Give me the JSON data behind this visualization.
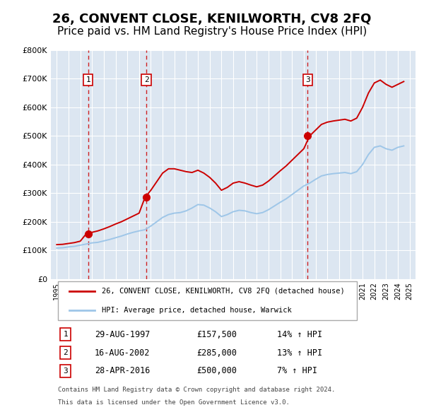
{
  "title": "26, CONVENT CLOSE, KENILWORTH, CV8 2FQ",
  "subtitle": "Price paid vs. HM Land Registry's House Price Index (HPI)",
  "title_fontsize": 13,
  "subtitle_fontsize": 11,
  "background_color": "#ffffff",
  "plot_bg_color": "#dce6f1",
  "grid_color": "#ffffff",
  "ylim": [
    0,
    800000
  ],
  "yticks": [
    0,
    100000,
    200000,
    300000,
    400000,
    500000,
    600000,
    700000,
    800000
  ],
  "ytick_labels": [
    "£0",
    "£100K",
    "£200K",
    "£300K",
    "£400K",
    "£500K",
    "£600K",
    "£700K",
    "£800K"
  ],
  "hpi_years": [
    1995,
    1995.5,
    1996,
    1996.5,
    1997,
    1997.5,
    1998,
    1998.5,
    1999,
    1999.5,
    2000,
    2000.5,
    2001,
    2001.5,
    2002,
    2002.5,
    2003,
    2003.5,
    2004,
    2004.5,
    2005,
    2005.5,
    2006,
    2006.5,
    2007,
    2007.5,
    2008,
    2008.5,
    2009,
    2009.5,
    2010,
    2010.5,
    2011,
    2011.5,
    2012,
    2012.5,
    2013,
    2013.5,
    2014,
    2014.5,
    2015,
    2015.5,
    2016,
    2016.5,
    2017,
    2017.5,
    2018,
    2018.5,
    2019,
    2019.5,
    2020,
    2020.5,
    2021,
    2021.5,
    2022,
    2022.5,
    2023,
    2023.5,
    2024,
    2024.5
  ],
  "hpi_values": [
    108000,
    109000,
    112000,
    114000,
    118000,
    122000,
    126000,
    128000,
    133000,
    138000,
    144000,
    150000,
    157000,
    163000,
    168000,
    172000,
    185000,
    200000,
    215000,
    225000,
    230000,
    232000,
    238000,
    248000,
    260000,
    258000,
    248000,
    235000,
    218000,
    225000,
    235000,
    240000,
    238000,
    232000,
    228000,
    232000,
    242000,
    255000,
    268000,
    280000,
    295000,
    310000,
    325000,
    335000,
    348000,
    360000,
    365000,
    368000,
    370000,
    372000,
    368000,
    375000,
    400000,
    435000,
    460000,
    465000,
    455000,
    450000,
    460000,
    465000
  ],
  "price_years": [
    1995,
    1995.5,
    1996,
    1996.5,
    1997,
    1997.5,
    1998,
    1998.5,
    1999,
    1999.5,
    2000,
    2000.5,
    2001,
    2001.5,
    2002,
    2002.5,
    2003,
    2003.5,
    2004,
    2004.5,
    2005,
    2005.5,
    2006,
    2006.5,
    2007,
    2007.5,
    2008,
    2008.5,
    2009,
    2009.5,
    2010,
    2010.5,
    2011,
    2011.5,
    2012,
    2012.5,
    2013,
    2013.5,
    2014,
    2014.5,
    2015,
    2015.5,
    2016,
    2016.5,
    2017,
    2017.5,
    2018,
    2018.5,
    2019,
    2019.5,
    2020,
    2020.5,
    2021,
    2021.5,
    2022,
    2022.5,
    2023,
    2023.5,
    2024,
    2024.5
  ],
  "price_values": [
    120000,
    121000,
    124000,
    127000,
    132000,
    157500,
    163000,
    168000,
    175000,
    183000,
    192000,
    200000,
    210000,
    220000,
    230000,
    285000,
    310000,
    340000,
    370000,
    385000,
    385000,
    380000,
    375000,
    372000,
    380000,
    370000,
    355000,
    335000,
    310000,
    320000,
    335000,
    340000,
    335000,
    328000,
    322000,
    328000,
    342000,
    360000,
    378000,
    395000,
    415000,
    435000,
    455000,
    500000,
    520000,
    540000,
    548000,
    552000,
    555000,
    558000,
    552000,
    562000,
    600000,
    650000,
    685000,
    695000,
    680000,
    670000,
    680000,
    690000
  ],
  "sale_events": [
    {
      "year": 1997.67,
      "price": 157500,
      "label": "1"
    },
    {
      "year": 2002.62,
      "price": 285000,
      "label": "2"
    },
    {
      "year": 2016.33,
      "price": 500000,
      "label": "3"
    }
  ],
  "sale_color": "#cc0000",
  "hpi_color": "#9ec6e8",
  "xtick_years": [
    1995,
    1996,
    1997,
    1998,
    1999,
    2000,
    2001,
    2002,
    2003,
    2004,
    2005,
    2006,
    2007,
    2008,
    2009,
    2010,
    2011,
    2012,
    2013,
    2014,
    2015,
    2016,
    2017,
    2018,
    2019,
    2020,
    2021,
    2022,
    2023,
    2024,
    2025
  ],
  "legend_sale_label": "26, CONVENT CLOSE, KENILWORTH, CV8 2FQ (detached house)",
  "legend_hpi_label": "HPI: Average price, detached house, Warwick",
  "table_data": [
    {
      "num": "1",
      "date": "29-AUG-1997",
      "price": "£157,500",
      "pct": "14% ↑ HPI"
    },
    {
      "num": "2",
      "date": "16-AUG-2002",
      "price": "£285,000",
      "pct": "13% ↑ HPI"
    },
    {
      "num": "3",
      "date": "28-APR-2016",
      "price": "£500,000",
      "pct": "7% ↑ HPI"
    }
  ],
  "footnote1": "Contains HM Land Registry data © Crown copyright and database right 2024.",
  "footnote2": "This data is licensed under the Open Government Licence v3.0."
}
